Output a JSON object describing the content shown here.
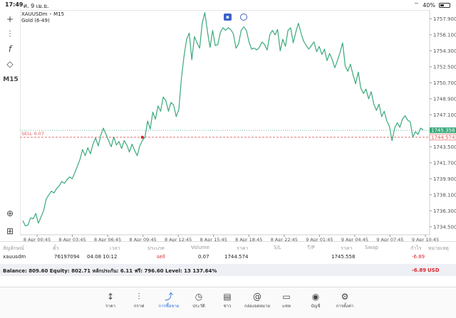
{
  "status": {
    "time": "17:49",
    "date": "ศ. 9 เม.ย.",
    "battery": "40%"
  },
  "toolbar": {
    "timeframe": "M15"
  },
  "symbol": {
    "name": "XAUUSDm",
    "timeframe": "M15",
    "description": "Gold (6-49)"
  },
  "chart_data": {
    "type": "line",
    "title": "",
    "xlabel": "",
    "ylabel": "",
    "x_ticks": [
      "8 Apr 00:45",
      "8 Apr 03:45",
      "8 Apr 06:45",
      "8 Apr 09:45",
      "8 Apr 12:45",
      "8 Apr 15:45",
      "8 Apr 18:45",
      "8 Apr 22:45",
      "9 Apr 01:45",
      "9 Apr 04:45",
      "9 Apr 07:45",
      "9 Apr 10:45"
    ],
    "y_ticks": [
      "1757.900",
      "1756.100",
      "1754.300",
      "1752.500",
      "1750.700",
      "1748.900",
      "1747.100",
      "1745.300",
      "1743.500",
      "1741.700",
      "1739.900",
      "1738.100",
      "1736.300",
      "1734.500"
    ],
    "ylim": [
      1733.6,
      1758.9
    ],
    "series": [
      {
        "values": [
          1735.2,
          1734.6,
          1734.7,
          1735.5,
          1735.4,
          1736.0,
          1734.9,
          1735.6,
          1736.3,
          1737.6,
          1738.1,
          1738.5,
          1738.3,
          1738.8,
          1739.1,
          1739.6,
          1739.4,
          1739.8,
          1740.1,
          1739.9,
          1740.6,
          1741.3,
          1742.1,
          1743.2,
          1742.5,
          1743.4,
          1742.7,
          1743.8,
          1744.5,
          1743.6,
          1744.8,
          1745.6,
          1744.9,
          1744.2,
          1743.5,
          1744.6,
          1743.7,
          1744.1,
          1743.3,
          1744.2,
          1743.7,
          1742.9,
          1743.8,
          1743.1,
          1742.5,
          1743.6,
          1744.2,
          1744.6,
          1746.4,
          1745.5,
          1747.4,
          1746.6,
          1748.1,
          1747.5,
          1749.1,
          1748.7,
          1747.5,
          1748.5,
          1748.2,
          1746.9,
          1747.7,
          1751.2,
          1753.7,
          1755.6,
          1756.3,
          1753.3,
          1755.9,
          1755.2,
          1754.6,
          1757.4,
          1758.6,
          1756.5,
          1754.7,
          1756.6,
          1754.9,
          1755.0,
          1756.4,
          1756.9,
          1756.6,
          1756.9,
          1756.7,
          1756.2,
          1754.6,
          1755.1,
          1756.6,
          1757.0,
          1756.6,
          1755.3,
          1754.5,
          1754.6,
          1754.4,
          1754.7,
          1755.3,
          1755.0,
          1754.4,
          1756.1,
          1756.6,
          1756.1,
          1756.7,
          1754.3,
          1755.6,
          1754.8,
          1756.6,
          1756.9,
          1755.2,
          1756.4,
          1757.4,
          1756.3,
          1755.4,
          1754.9,
          1754.5,
          1754.9,
          1755.3,
          1754.2,
          1754.8,
          1753.9,
          1754.5,
          1753.2,
          1754.0,
          1753.3,
          1752.4,
          1753.2,
          1754.1,
          1755.2,
          1752.6,
          1752.0,
          1752.8,
          1751.6,
          1750.6,
          1751.9,
          1750.1,
          1749.5,
          1750.0,
          1748.9,
          1749.7,
          1748.3,
          1747.6,
          1748.3,
          1746.9,
          1747.5,
          1746.4,
          1745.8,
          1744.2,
          1745.6,
          1746.2,
          1745.7,
          1746.6,
          1747.0,
          1746.5,
          1746.3,
          1744.6,
          1745.2,
          1744.9,
          1745.6,
          1745.4
        ],
        "color": "#3aa97a"
      }
    ],
    "sell_marker": {
      "label": "SELL 0.07",
      "price": 1744.574,
      "index": 46
    },
    "current_bid": {
      "label": "1745.358",
      "price": 1745.358,
      "color": "#3aa97a"
    },
    "position_price": {
      "label": "1744.574",
      "price": 1744.574,
      "color": "#e25a5a"
    }
  },
  "table": {
    "headers": [
      "สัญลักษณ์",
      "ตั๋ว",
      "เวลา",
      "ประเภท",
      "Volume",
      "ราคา",
      "S/L",
      "T/P",
      "ราคา",
      "Swap",
      "กำไร",
      "หมายเหตุ"
    ],
    "row": {
      "symbol": "xauusdm",
      "ticket": "76197094",
      "time": "04.08 10:12",
      "type": "sell",
      "volume": "0.07",
      "open_price": "1744.574",
      "current_price": "1745.558",
      "profit": "-6.89"
    },
    "balance": {
      "text": "Balance: 809.60 Equity: 802.71 หลักประกัน: 6.11 ฟรี: 796.60 Level: 13 137.64%",
      "profit": "-6.89",
      "currency": "USD"
    }
  },
  "tabs": [
    {
      "label": "ราคา",
      "icon": "↕"
    },
    {
      "label": "กราฟ",
      "icon": "⫶"
    },
    {
      "label": "การซื้อขาย",
      "icon": "⤴"
    },
    {
      "label": "ประวัติ",
      "icon": "◷"
    },
    {
      "label": "ข่าว",
      "icon": "▤"
    },
    {
      "label": "กล่องจดหมาย",
      "icon": "@"
    },
    {
      "label": "แชท",
      "icon": "▭"
    },
    {
      "label": "บัญชี",
      "icon": "◉"
    },
    {
      "label": "การตั้งค่า",
      "icon": "⚙"
    }
  ],
  "colors": {
    "accent": "#2a6fdb",
    "loss": "#d9262e",
    "line": "#3aa97a"
  }
}
